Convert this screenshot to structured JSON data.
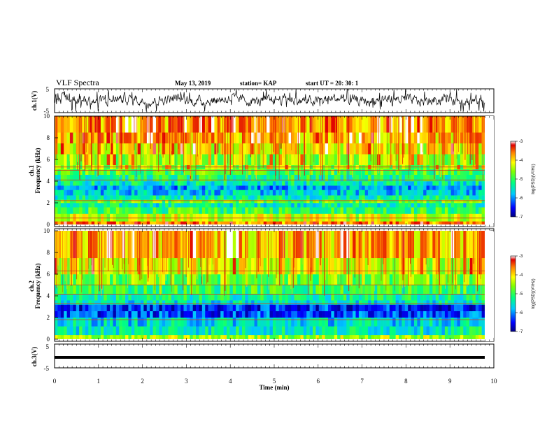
{
  "header": {
    "title": "VLF Spectra",
    "date": "May 13, 2019",
    "station": "station= KAP",
    "start": "start  UT  =   20: 30: 1"
  },
  "chart_data": [
    {
      "type": "line",
      "panel": "ch1-waveform",
      "ylabel": "ch.1(V)",
      "ylim": [
        -5,
        5
      ],
      "yticks": [
        "5",
        "-5"
      ],
      "note": "dense noisy waveform, mostly between about -2 and +3 V"
    },
    {
      "type": "heatmap",
      "panel": "ch1-spectrogram",
      "ylabel_line1": "ch.1",
      "ylabel_line2": "Frequency (kHz)",
      "ylim": [
        0,
        10
      ],
      "yticks": [
        "0",
        "2",
        "4",
        "6",
        "8",
        "10"
      ],
      "colorbar": {
        "label": "log(PSD)(V²/Hz)",
        "range": [
          -7,
          -3
        ],
        "ticks": [
          "-3",
          "-4",
          "-5",
          "-6",
          "-7"
        ]
      },
      "bands": [
        {
          "from": 0,
          "to": 0.3,
          "level": -3.6
        },
        {
          "from": 0.3,
          "to": 1.0,
          "level": -4.3
        },
        {
          "from": 1.0,
          "to": 1.6,
          "level": -5.0
        },
        {
          "from": 1.6,
          "to": 2.0,
          "level": -5.4
        },
        {
          "from": 2.0,
          "to": 2.3,
          "level": -4.8
        },
        {
          "from": 2.3,
          "to": 2.7,
          "level": -5.3
        },
        {
          "from": 2.7,
          "to": 3.2,
          "level": -5.7
        },
        {
          "from": 3.2,
          "to": 3.6,
          "level": -5.9
        },
        {
          "from": 3.6,
          "to": 4.0,
          "level": -5.4
        },
        {
          "from": 4.0,
          "to": 4.6,
          "level": -5.2
        },
        {
          "from": 4.6,
          "to": 5.1,
          "level": -4.9
        },
        {
          "from": 5.1,
          "to": 5.5,
          "level": -4.6
        },
        {
          "from": 5.5,
          "to": 6.5,
          "level": -4.5
        },
        {
          "from": 6.5,
          "to": 7.5,
          "level": -4.2
        },
        {
          "from": 7.5,
          "to": 8.5,
          "level": -3.9
        },
        {
          "from": 8.5,
          "to": 10.0,
          "level": -3.7
        }
      ],
      "lines": [
        5.0,
        5.3,
        4.1,
        2.2,
        0.6
      ]
    },
    {
      "type": "heatmap",
      "panel": "ch2-spectrogram",
      "ylabel_line1": "ch.2",
      "ylabel_line2": "Frequency (kHz)",
      "ylim": [
        0,
        10
      ],
      "yticks": [
        "0",
        "2",
        "4",
        "6",
        "8",
        "10"
      ],
      "colorbar": {
        "label": "log(PSD)(V²/Hz)",
        "range": [
          -7,
          -3
        ],
        "ticks": [
          "-3",
          "-4",
          "-5",
          "-6",
          "-7"
        ]
      },
      "bands": [
        {
          "from": 0,
          "to": 0.4,
          "level": -4.5
        },
        {
          "from": 0.4,
          "to": 1.2,
          "level": -5.4
        },
        {
          "from": 1.2,
          "to": 2.0,
          "level": -5.6
        },
        {
          "from": 2.0,
          "to": 2.6,
          "level": -6.3
        },
        {
          "from": 2.6,
          "to": 3.2,
          "level": -6.4
        },
        {
          "from": 3.2,
          "to": 3.6,
          "level": -5.5
        },
        {
          "from": 3.6,
          "to": 4.2,
          "level": -5.3
        },
        {
          "from": 4.2,
          "to": 5.0,
          "level": -5.0
        },
        {
          "from": 5.0,
          "to": 6.0,
          "level": -4.7
        },
        {
          "from": 6.0,
          "to": 7.5,
          "level": -4.3
        },
        {
          "from": 7.5,
          "to": 10.0,
          "level": -3.9
        }
      ],
      "lines": [
        6.3,
        5.0,
        4.1,
        3.3,
        1.8
      ]
    },
    {
      "type": "line",
      "panel": "ch3-waveform",
      "ylabel": "ch.3(V)",
      "ylim": [
        -5,
        5
      ],
      "yticks": [
        "5",
        "-5"
      ],
      "note": "flat thick trace near 0 V"
    }
  ],
  "xaxis": {
    "label": "Time (min)",
    "xlim": [
      0,
      10
    ],
    "ticks": [
      "0",
      "1",
      "2",
      "3",
      "4",
      "5",
      "6",
      "7",
      "8",
      "9",
      "10"
    ]
  }
}
